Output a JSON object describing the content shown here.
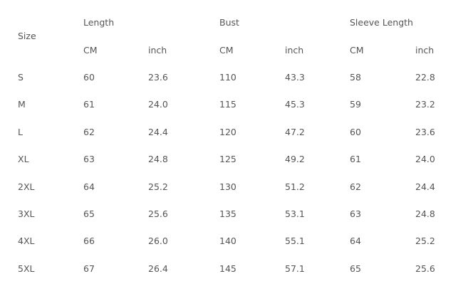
{
  "table": {
    "size_header": "Size",
    "groups": [
      "Length",
      "Bust",
      "Sleeve Length"
    ],
    "units": [
      "CM",
      "inch",
      "CM",
      "inch",
      "CM",
      "inch"
    ],
    "rows": [
      [
        "S",
        "60",
        "23.6",
        "110",
        "43.3",
        "58",
        "22.8"
      ],
      [
        "M",
        "61",
        "24.0",
        "115",
        "45.3",
        "59",
        "23.2"
      ],
      [
        "L",
        "62",
        "24.4",
        "120",
        "47.2",
        "60",
        "23.6"
      ],
      [
        "XL",
        "63",
        "24.8",
        "125",
        "49.2",
        "61",
        "24.0"
      ],
      [
        "2XL",
        "64",
        "25.2",
        "130",
        "51.2",
        "62",
        "24.4"
      ],
      [
        "3XL",
        "65",
        "25.6",
        "135",
        "53.1",
        "63",
        "24.8"
      ],
      [
        "4XL",
        "66",
        "26.0",
        "140",
        "55.1",
        "64",
        "25.2"
      ],
      [
        "5XL",
        "67",
        "26.4",
        "145",
        "57.1",
        "65",
        "25.6"
      ]
    ]
  }
}
